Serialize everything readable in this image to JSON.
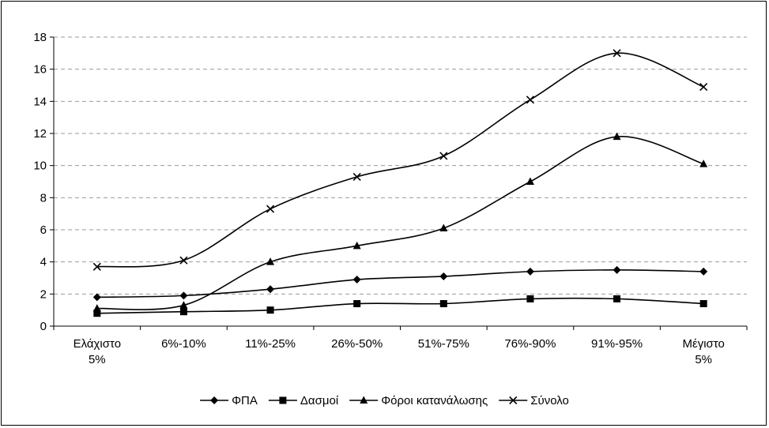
{
  "chart_data": {
    "type": "line",
    "categories": [
      [
        "Ελάχιστο",
        "5%"
      ],
      [
        "6%-10%"
      ],
      [
        "11%-25%"
      ],
      [
        "26%-50%"
      ],
      [
        "51%-75%"
      ],
      [
        "76%-90%"
      ],
      [
        "91%-95%"
      ],
      [
        "Μέγιστο",
        "5%"
      ]
    ],
    "series": [
      {
        "name": "ΦΠΑ",
        "marker": "diamond",
        "values": [
          1.8,
          1.9,
          2.3,
          2.9,
          3.1,
          3.4,
          3.5,
          3.4
        ]
      },
      {
        "name": "Δασμοί",
        "marker": "square",
        "values": [
          0.8,
          0.9,
          1.0,
          1.4,
          1.4,
          1.7,
          1.7,
          1.4
        ]
      },
      {
        "name": "Φόροι κατανάλωσης",
        "marker": "triangle",
        "values": [
          1.1,
          1.3,
          4.0,
          5.0,
          6.1,
          9.0,
          11.8,
          10.1
        ]
      },
      {
        "name": "Σύνολο",
        "marker": "x",
        "values": [
          3.7,
          4.1,
          7.3,
          9.3,
          10.6,
          14.1,
          17.0,
          14.9
        ]
      }
    ],
    "ylim": [
      0,
      18
    ],
    "yticks": [
      0,
      2,
      4,
      6,
      8,
      10,
      12,
      14,
      16,
      18
    ],
    "grid": "horizontal dashed",
    "legend": "bottom-center",
    "line_color": "#000000",
    "smooth": true
  }
}
